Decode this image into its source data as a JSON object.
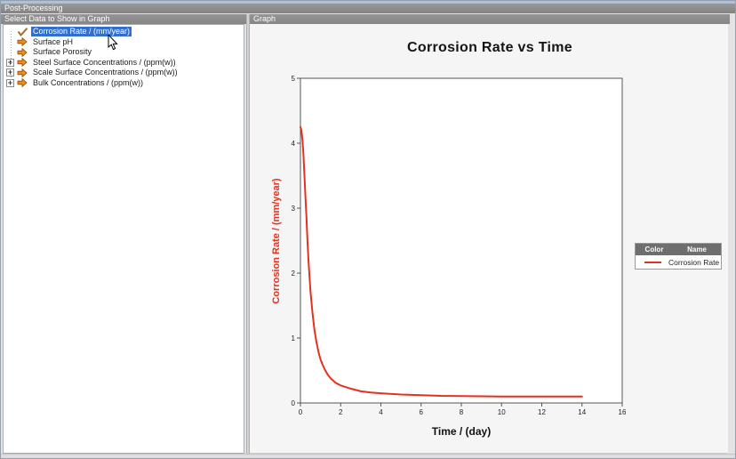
{
  "window": {
    "title": "Post-Processing"
  },
  "left_panel": {
    "header": "Select Data to Show in Graph",
    "tree": {
      "expander_glyph": "+",
      "items": [
        {
          "label": "Corrosion Rate / (mm/year)",
          "icon": "check-icon",
          "selected": true,
          "expandable": false
        },
        {
          "label": "Surface pH",
          "icon": "arrow-icon",
          "selected": false,
          "expandable": false
        },
        {
          "label": "Surface Porosity",
          "icon": "arrow-icon",
          "selected": false,
          "expandable": false
        },
        {
          "label": "Steel Surface Concentrations / (ppm(w))",
          "icon": "arrow-icon",
          "selected": false,
          "expandable": true
        },
        {
          "label": "Scale Surface Concentrations / (ppm(w))",
          "icon": "arrow-icon",
          "selected": false,
          "expandable": true
        },
        {
          "label": "Bulk Concentrations / (ppm(w))",
          "icon": "arrow-icon",
          "selected": false,
          "expandable": true
        }
      ]
    }
  },
  "right_panel": {
    "header": "Graph"
  },
  "chart_data": {
    "type": "line",
    "title": "Corrosion Rate vs Time",
    "xlabel": "Time / (day)",
    "ylabel": "Corrosion Rate / (mm/year)",
    "xlim": [
      0,
      16
    ],
    "ylim": [
      0,
      5
    ],
    "xticks": [
      0,
      2,
      4,
      6,
      8,
      10,
      12,
      14,
      16
    ],
    "yticks": [
      0,
      1,
      2,
      3,
      4,
      5
    ],
    "grid": false,
    "legend": {
      "position": "right-of-plot",
      "columns": [
        "Color",
        "Name"
      ],
      "entries": [
        {
          "name": "Corrosion Rate",
          "color": "#e5311f"
        }
      ]
    },
    "series": [
      {
        "name": "Corrosion Rate",
        "color": "#e5311f",
        "x": [
          0,
          0.05,
          0.1,
          0.15,
          0.2,
          0.25,
          0.3,
          0.35,
          0.4,
          0.45,
          0.5,
          0.6,
          0.7,
          0.8,
          0.9,
          1.0,
          1.1,
          1.2,
          1.35,
          1.5,
          1.75,
          2.0,
          2.5,
          3.0,
          3.5,
          4.0,
          5.0,
          6.0,
          7.0,
          8.0,
          10.0,
          12.0,
          14.0
        ],
        "y": [
          4.25,
          4.2,
          4.05,
          3.82,
          3.5,
          3.15,
          2.85,
          2.5,
          2.2,
          1.95,
          1.72,
          1.38,
          1.12,
          0.93,
          0.78,
          0.67,
          0.59,
          0.52,
          0.44,
          0.38,
          0.31,
          0.27,
          0.22,
          0.18,
          0.16,
          0.15,
          0.13,
          0.12,
          0.11,
          0.105,
          0.1,
          0.1,
          0.1
        ]
      }
    ]
  },
  "colors": {
    "selection_blue": "#2f6fd0",
    "header_gray": "#8c8c8c",
    "legend_header_gray": "#6e6e6e",
    "curve_red": "#e5311f",
    "icon_orange": "#f28a1e",
    "axis_border": "#555555"
  }
}
